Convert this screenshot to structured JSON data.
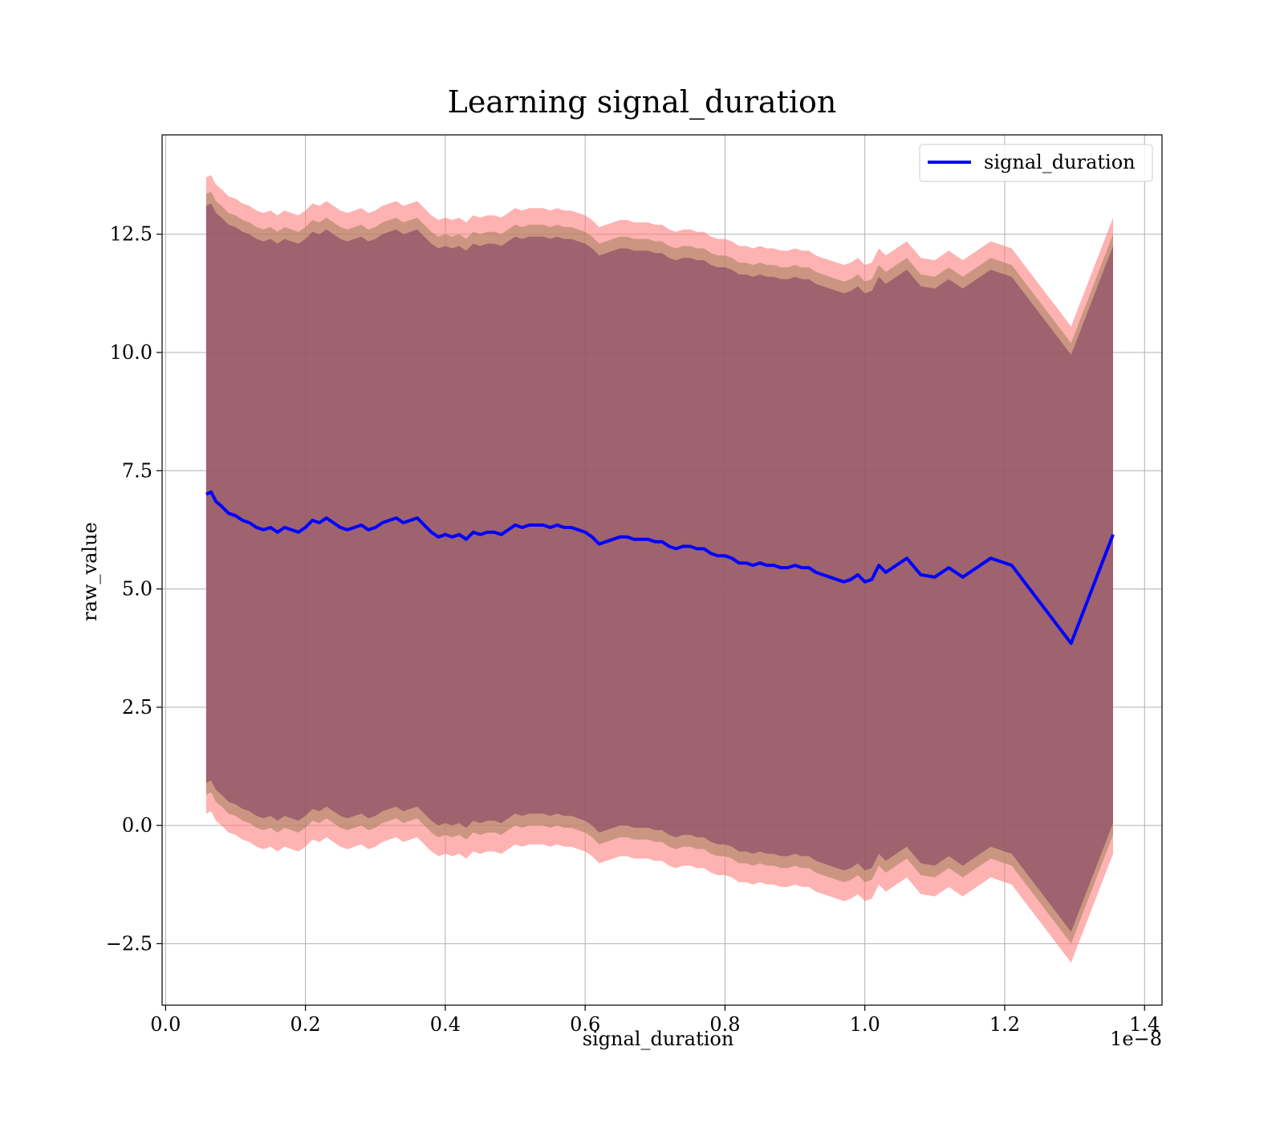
{
  "chart_data": {
    "type": "line",
    "title": "Learning signal_duration",
    "xlabel": "signal_duration",
    "ylabel": "raw_value",
    "x_scale_label": "1e−8",
    "xlim": [
      -0.005,
      1.425
    ],
    "ylim": [
      -3.8,
      14.6
    ],
    "grid": true,
    "legend_position": "top-right",
    "x_ticks": [
      {
        "value": 0.0,
        "label": "0.0"
      },
      {
        "value": 0.2,
        "label": "0.2"
      },
      {
        "value": 0.4,
        "label": "0.4"
      },
      {
        "value": 0.6,
        "label": "0.6"
      },
      {
        "value": 0.8,
        "label": "0.8"
      },
      {
        "value": 1.0,
        "label": "1.0"
      },
      {
        "value": 1.2,
        "label": "1.2"
      },
      {
        "value": 1.4,
        "label": "1.4"
      }
    ],
    "y_ticks": [
      {
        "value": -2.5,
        "label": "−2.5"
      },
      {
        "value": 0.0,
        "label": "0.0"
      },
      {
        "value": 2.5,
        "label": "2.5"
      },
      {
        "value": 5.0,
        "label": "5.0"
      },
      {
        "value": 7.5,
        "label": "7.5"
      },
      {
        "value": 10.0,
        "label": "10.0"
      },
      {
        "value": 12.5,
        "label": "12.5"
      }
    ],
    "series": [
      {
        "name": "signal_duration",
        "color": "#0000ff",
        "x": [
          0.058,
          0.065,
          0.072,
          0.08,
          0.09,
          0.1,
          0.11,
          0.12,
          0.13,
          0.14,
          0.15,
          0.16,
          0.17,
          0.18,
          0.19,
          0.2,
          0.21,
          0.22,
          0.23,
          0.24,
          0.25,
          0.26,
          0.27,
          0.28,
          0.29,
          0.3,
          0.31,
          0.32,
          0.33,
          0.34,
          0.35,
          0.36,
          0.37,
          0.38,
          0.39,
          0.4,
          0.41,
          0.42,
          0.43,
          0.44,
          0.45,
          0.46,
          0.47,
          0.48,
          0.49,
          0.5,
          0.51,
          0.52,
          0.53,
          0.54,
          0.55,
          0.56,
          0.57,
          0.58,
          0.59,
          0.6,
          0.61,
          0.62,
          0.63,
          0.64,
          0.65,
          0.66,
          0.67,
          0.68,
          0.69,
          0.7,
          0.71,
          0.72,
          0.73,
          0.74,
          0.75,
          0.76,
          0.77,
          0.78,
          0.79,
          0.8,
          0.81,
          0.82,
          0.83,
          0.84,
          0.85,
          0.86,
          0.87,
          0.88,
          0.89,
          0.9,
          0.91,
          0.92,
          0.93,
          0.94,
          0.95,
          0.96,
          0.97,
          0.98,
          0.99,
          1.0,
          1.01,
          1.02,
          1.03,
          1.06,
          1.08,
          1.1,
          1.12,
          1.14,
          1.18,
          1.21,
          1.295,
          1.355
        ],
        "values": [
          7.0,
          7.05,
          6.85,
          6.75,
          6.6,
          6.55,
          6.45,
          6.4,
          6.3,
          6.25,
          6.3,
          6.2,
          6.3,
          6.25,
          6.2,
          6.3,
          6.45,
          6.4,
          6.5,
          6.4,
          6.3,
          6.25,
          6.3,
          6.35,
          6.25,
          6.3,
          6.4,
          6.45,
          6.5,
          6.4,
          6.45,
          6.5,
          6.35,
          6.2,
          6.1,
          6.15,
          6.1,
          6.15,
          6.05,
          6.2,
          6.15,
          6.2,
          6.2,
          6.15,
          6.25,
          6.35,
          6.3,
          6.35,
          6.35,
          6.35,
          6.3,
          6.35,
          6.3,
          6.3,
          6.25,
          6.2,
          6.1,
          5.95,
          6.0,
          6.05,
          6.1,
          6.1,
          6.05,
          6.05,
          6.05,
          6.0,
          6.0,
          5.9,
          5.85,
          5.9,
          5.9,
          5.85,
          5.85,
          5.75,
          5.7,
          5.7,
          5.65,
          5.55,
          5.55,
          5.5,
          5.55,
          5.5,
          5.5,
          5.45,
          5.45,
          5.5,
          5.45,
          5.45,
          5.35,
          5.3,
          5.25,
          5.2,
          5.15,
          5.2,
          5.3,
          5.15,
          5.2,
          5.5,
          5.35,
          5.65,
          5.3,
          5.25,
          5.45,
          5.25,
          5.65,
          5.5,
          3.85,
          6.15
        ]
      }
    ],
    "bands": [
      {
        "color": "#ff7f7f",
        "opacity": 0.6,
        "offset_upper": 6.7,
        "offset_lower": 6.75
      },
      {
        "color": "#a0805a",
        "opacity": 0.55,
        "offset_upper": 6.35,
        "offset_lower": 6.35
      },
      {
        "color": "#7a3a60",
        "opacity": 0.55,
        "offset_upper": 6.1,
        "offset_lower": 6.1
      }
    ]
  }
}
